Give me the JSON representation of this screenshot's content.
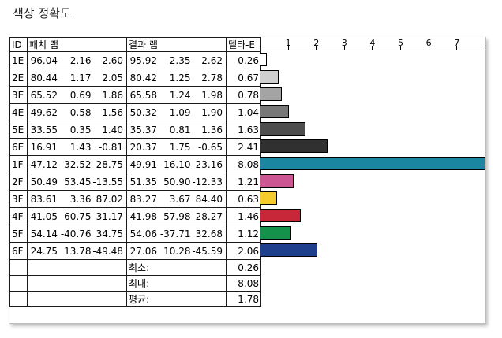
{
  "title": "색상 정확도",
  "columns": {
    "id": "ID",
    "patch": "패치 랩",
    "result": "결과 랩",
    "delta": "델타-E"
  },
  "axis_ticks": [
    "1",
    "2",
    "3",
    "4",
    "5",
    "6",
    "7"
  ],
  "rows": [
    {
      "id": "1E",
      "patch": [
        "96.04",
        "2.16",
        "2.60"
      ],
      "result": [
        "95.92",
        "2.35",
        "2.62"
      ],
      "delta": "0.26",
      "color": "#ffffff"
    },
    {
      "id": "2E",
      "patch": [
        "80.44",
        "1.17",
        "2.05"
      ],
      "result": [
        "80.42",
        "1.25",
        "2.78"
      ],
      "delta": "0.67",
      "color": "#cfcfcf"
    },
    {
      "id": "3E",
      "patch": [
        "65.52",
        "0.69",
        "1.86"
      ],
      "result": [
        "65.58",
        "1.24",
        "1.98"
      ],
      "delta": "0.78",
      "color": "#a4a4a4"
    },
    {
      "id": "4E",
      "patch": [
        "49.62",
        "0.58",
        "1.56"
      ],
      "result": [
        "50.32",
        "1.09",
        "1.90"
      ],
      "delta": "1.04",
      "color": "#787878"
    },
    {
      "id": "5E",
      "patch": [
        "33.55",
        "0.35",
        "1.40"
      ],
      "result": [
        "35.37",
        "0.81",
        "1.36"
      ],
      "delta": "1.63",
      "color": "#4e4e4e"
    },
    {
      "id": "6E",
      "patch": [
        "16.91",
        "1.43",
        "-0.81"
      ],
      "result": [
        "20.37",
        "1.75",
        "-0.65"
      ],
      "delta": "2.41",
      "color": "#303030"
    },
    {
      "id": "1F",
      "patch": [
        "47.12",
        "-32.52",
        "-28.75"
      ],
      "result": [
        "49.91",
        "-16.10",
        "-23.16"
      ],
      "delta": "8.08",
      "color": "#1a86a0"
    },
    {
      "id": "2F",
      "patch": [
        "50.49",
        "53.45",
        "-13.55"
      ],
      "result": [
        "51.35",
        "50.90",
        "-12.33"
      ],
      "delta": "1.21",
      "color": "#cc5593"
    },
    {
      "id": "3F",
      "patch": [
        "83.61",
        "3.36",
        "87.02"
      ],
      "result": [
        "83.27",
        "3.67",
        "84.40"
      ],
      "delta": "0.63",
      "color": "#f4cc2c"
    },
    {
      "id": "4F",
      "patch": [
        "41.05",
        "60.75",
        "31.17"
      ],
      "result": [
        "41.98",
        "57.98",
        "28.27"
      ],
      "delta": "1.46",
      "color": "#c8273a"
    },
    {
      "id": "5F",
      "patch": [
        "54.14",
        "-40.76",
        "34.75"
      ],
      "result": [
        "54.06",
        "-37.71",
        "32.68"
      ],
      "delta": "1.12",
      "color": "#14914b"
    },
    {
      "id": "6F",
      "patch": [
        "24.75",
        "13.78",
        "-49.48"
      ],
      "result": [
        "27.06",
        "10.28",
        "-45.59"
      ],
      "delta": "2.06",
      "color": "#1f3e8c"
    }
  ],
  "stats": [
    {
      "label": "최소:",
      "value": "0.26"
    },
    {
      "label": "최대:",
      "value": "8.08"
    },
    {
      "label": "평균:",
      "value": "1.78"
    }
  ]
}
